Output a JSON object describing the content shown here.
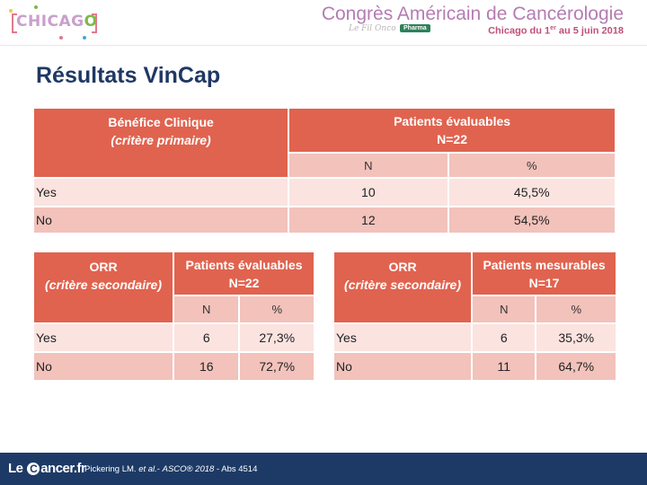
{
  "header": {
    "logo_text_a": "CHI",
    "logo_text_b": "CAG",
    "logo_text_c": "O",
    "congress_title": "Congrès Américain de Cancérologie",
    "dates_prefix": "Chicago du 1",
    "dates_sup": "er",
    "dates_suffix": " au 5 juin 2018",
    "sub_brand": "Le Fil Onco",
    "badge": "Pharma"
  },
  "title": "Résultats VinCap",
  "table1": {
    "h_line1": "Bénéfice Clinique",
    "h_line2": "(critère primaire)",
    "group_line1": "Patients évaluables",
    "group_line2": "N=22",
    "col_n": "N",
    "col_pct": "%",
    "rows": [
      {
        "label": "Yes",
        "n": "10",
        "pct": "45,5%"
      },
      {
        "label": "No",
        "n": "12",
        "pct": "54,5%"
      }
    ]
  },
  "table2": {
    "h_line1": "ORR",
    "h_line2": "(critère secondaire)",
    "group_line1": "Patients évaluables",
    "group_line2": "N=22",
    "col_n": "N",
    "col_pct": "%",
    "rows": [
      {
        "label": "Yes",
        "n": "6",
        "pct": "27,3%"
      },
      {
        "label": "No",
        "n": "16",
        "pct": "72,7%"
      }
    ]
  },
  "table3": {
    "h_line1": "ORR",
    "h_line2": "(critère secondaire)",
    "group_line1": "Patients mesurables",
    "group_line2": "N=17",
    "col_n": "N",
    "col_pct": "%",
    "rows": [
      {
        "label": "Yes",
        "n": "6",
        "pct": "35,3%"
      },
      {
        "label": "No",
        "n": "11",
        "pct": "64,7%"
      }
    ]
  },
  "footer": {
    "logo_a": "Le ",
    "logo_c": "C",
    "logo_b": "ancer.fr",
    "citation_a": "Pickering  LM. ",
    "citation_b": "et al.",
    "citation_c": "- ",
    "citation_d": "ASCO® 2018",
    "citation_e": " - Abs 4514"
  }
}
